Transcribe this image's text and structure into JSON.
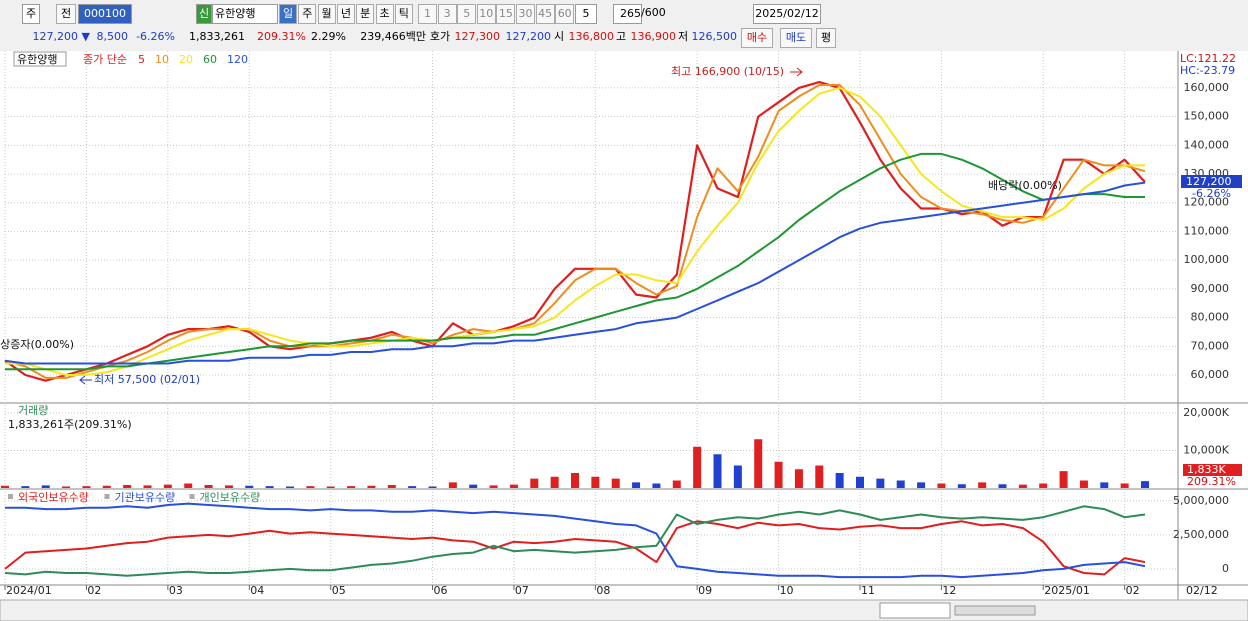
{
  "toolbar": {
    "period_type": "주",
    "prev": "전",
    "code": "000100",
    "new_badge": "신",
    "name": "유한양행",
    "periods": [
      "일",
      "주",
      "월",
      "년",
      "분",
      "초",
      "틱"
    ],
    "intervals": [
      "1",
      "3",
      "5",
      "10",
      "15",
      "30",
      "45",
      "60"
    ],
    "interval_input": "5",
    "count": "265",
    "count_max": "/600",
    "date": "2025/02/12"
  },
  "quote": {
    "price": "127,200 ▼",
    "change": "8,500",
    "change_pct": "-6.26%",
    "volume": "1,833,261",
    "volume_pct": "209.31%",
    "turnover": "2.29%",
    "amount": "239,466백만",
    "ask_label": "호가",
    "ask": "127,300",
    "bid": "127,200",
    "open_label": "시",
    "open": "136,800",
    "high_label": "고",
    "high": "136,900",
    "low_label": "저",
    "low": "126,500",
    "buy": "매수",
    "sell": "매도",
    "eval": "평"
  },
  "chart_data": [
    {
      "type": "line",
      "title": "유한양행",
      "legend_prefix": "종가 단순",
      "grid": true,
      "ylim": [
        50250,
        172500
      ],
      "yticks": [
        {
          "value": 60000,
          "label": "60,000"
        },
        {
          "value": 70000,
          "label": "70,000"
        },
        {
          "value": 80000,
          "label": "80,000"
        },
        {
          "value": 90000,
          "label": "90,000"
        },
        {
          "value": 100000,
          "label": "100,000"
        },
        {
          "value": 110000,
          "label": "110,000"
        },
        {
          "value": 120000,
          "label": "120,000"
        },
        {
          "value": 130000,
          "label": "130,000"
        },
        {
          "value": 140000,
          "label": "140,000"
        },
        {
          "value": 150000,
          "label": "150,000"
        },
        {
          "value": 160000,
          "label": "160,000"
        }
      ],
      "series": [
        {
          "name": "5",
          "color": "#e01e1e",
          "values": [
            65000,
            60000,
            58000,
            60000,
            62000,
            64000,
            67000,
            70000,
            74000,
            76000,
            76000,
            77000,
            75000,
            70000,
            69000,
            70000,
            71000,
            72000,
            73000,
            75000,
            72000,
            70000,
            78000,
            74000,
            75000,
            77000,
            80000,
            90000,
            97000,
            97000,
            97000,
            88000,
            87000,
            95000,
            140000,
            125000,
            122000,
            150000,
            155000,
            160000,
            162000,
            160000,
            148000,
            135000,
            125000,
            118000,
            118000,
            116000,
            117000,
            112000,
            115000,
            115000,
            135000,
            135000,
            130000,
            135000,
            127200
          ]
        },
        {
          "name": "10",
          "color": "#f08c1e",
          "values": [
            65000,
            63000,
            59000,
            59000,
            61000,
            63000,
            65000,
            68000,
            72000,
            75000,
            76000,
            76000,
            76000,
            72000,
            70000,
            70000,
            70000,
            71000,
            72000,
            74000,
            73000,
            71000,
            74000,
            76000,
            75000,
            76000,
            78000,
            85000,
            93000,
            97000,
            97000,
            92000,
            88000,
            91000,
            115000,
            132000,
            124000,
            136000,
            152000,
            157000,
            161000,
            161000,
            154000,
            142000,
            130000,
            122000,
            118000,
            117000,
            116000,
            114000,
            113000,
            115000,
            125000,
            135000,
            133000,
            133000,
            131000
          ]
        },
        {
          "name": "20",
          "color": "#f5e61e",
          "values": [
            64000,
            64000,
            62000,
            60000,
            60000,
            61000,
            63000,
            66000,
            69000,
            72000,
            74000,
            76000,
            76000,
            74000,
            72000,
            71000,
            70000,
            70000,
            71000,
            72000,
            73000,
            72000,
            73000,
            74000,
            75000,
            76000,
            77000,
            80000,
            86000,
            91000,
            95000,
            95000,
            93000,
            92000,
            103000,
            112000,
            120000,
            134000,
            145000,
            152000,
            158000,
            160000,
            157000,
            150000,
            140000,
            130000,
            124000,
            119000,
            117000,
            115000,
            115000,
            114000,
            118000,
            125000,
            130000,
            133000,
            133000
          ]
        },
        {
          "name": "60",
          "color": "#1e9632",
          "values": [
            62000,
            62000,
            62000,
            62000,
            62000,
            63000,
            63000,
            64000,
            65000,
            66000,
            67000,
            68000,
            69000,
            70000,
            70000,
            71000,
            71000,
            72000,
            72000,
            72000,
            72000,
            72000,
            73000,
            73000,
            73000,
            74000,
            74000,
            76000,
            78000,
            80000,
            82000,
            84000,
            86000,
            87000,
            90000,
            94000,
            98000,
            103000,
            108000,
            114000,
            119000,
            124000,
            128000,
            132000,
            135000,
            137000,
            137000,
            135000,
            132000,
            128000,
            124000,
            121000,
            122000,
            123000,
            123000,
            122000,
            122000
          ]
        },
        {
          "name": "120",
          "color": "#2850dc",
          "values": [
            65000,
            64000,
            64000,
            64000,
            64000,
            64000,
            64000,
            64000,
            64000,
            65000,
            65000,
            65000,
            66000,
            66000,
            66000,
            67000,
            67000,
            68000,
            68000,
            69000,
            69000,
            70000,
            70000,
            71000,
            71000,
            72000,
            72000,
            73000,
            74000,
            75000,
            76000,
            78000,
            79000,
            80000,
            83000,
            86000,
            89000,
            92000,
            96000,
            100000,
            104000,
            108000,
            111000,
            113000,
            114000,
            115000,
            116000,
            117000,
            118000,
            119000,
            120000,
            121000,
            122000,
            123000,
            124000,
            126000,
            127000
          ]
        }
      ],
      "annotations": [
        "최고 166,900 (10/15)",
        "최저 57,500 (02/01)",
        "유상증자(0.00%)",
        "배당락(0.00%)"
      ],
      "lc": "LC:121.22",
      "hc": "HC:-23.79",
      "current_label": "127,200",
      "current_change": "-6.26%"
    },
    {
      "type": "bar",
      "title": "거래량",
      "subtitle": "1,833,261주(209.31%)",
      "up_color": "#e02020",
      "down_color": "#2040d0",
      "grid": true,
      "ylim": [
        0,
        22400
      ],
      "yticks": [
        {
          "value": 10000,
          "label": "10,000K"
        },
        {
          "value": 20000,
          "label": "20,000K"
        }
      ],
      "values": [
        600,
        500,
        700,
        400,
        500,
        600,
        800,
        700,
        900,
        1200,
        800,
        700,
        600,
        500,
        400,
        500,
        400,
        500,
        600,
        800,
        500,
        400,
        1500,
        900,
        700,
        900,
        2500,
        3000,
        4000,
        3000,
        2500,
        1500,
        1200,
        2000,
        11000,
        9000,
        6000,
        13000,
        7000,
        5000,
        6000,
        4000,
        3000,
        2500,
        2000,
        1500,
        1200,
        1000,
        1500,
        1000,
        900,
        1200,
        4500,
        2000,
        1500,
        1200,
        1833
      ],
      "current_label": "1,833K",
      "current_pct": "209.31%"
    },
    {
      "type": "line",
      "grid": true,
      "ylim": [
        -1180000,
        5800000
      ],
      "yticks": [
        {
          "value": 0,
          "label": "0"
        },
        {
          "value": 2500000,
          "label": "2,500,000"
        },
        {
          "value": 5000000,
          "label": "5,000,000"
        }
      ],
      "categories": [
        "2024/01",
        null,
        null,
        null,
        "02",
        null,
        null,
        null,
        "03",
        null,
        null,
        null,
        "04",
        null,
        null,
        null,
        "05",
        null,
        null,
        null,
        null,
        "06",
        null,
        null,
        null,
        "07",
        null,
        null,
        null,
        "08",
        null,
        null,
        null,
        null,
        "09",
        null,
        null,
        null,
        "10",
        null,
        null,
        null,
        "11",
        null,
        null,
        null,
        "12",
        null,
        null,
        null,
        null,
        "2025/01",
        null,
        null,
        null,
        "02",
        null
      ],
      "x_end_label": "02/12",
      "series": [
        {
          "name": "외국인보유수량",
          "color": "#e01e1e",
          "values": [
            0,
            1200000,
            1300000,
            1400000,
            1500000,
            1700000,
            1900000,
            2000000,
            2300000,
            2400000,
            2500000,
            2400000,
            2600000,
            2800000,
            2600000,
            2700000,
            2600000,
            2500000,
            2400000,
            2300000,
            2200000,
            2300000,
            2100000,
            2000000,
            1500000,
            2000000,
            1900000,
            2000000,
            2200000,
            2100000,
            2000000,
            1500000,
            500000,
            3000000,
            3500000,
            3300000,
            3000000,
            3400000,
            3200000,
            3300000,
            3000000,
            2900000,
            3100000,
            3200000,
            3000000,
            3000000,
            3300000,
            3500000,
            3200000,
            3300000,
            3000000,
            2000000,
            200000,
            -300000,
            -400000,
            800000,
            500000
          ]
        },
        {
          "name": "기관보유수량",
          "color": "#2850dc",
          "values": [
            4500000,
            4500000,
            4400000,
            4400000,
            4500000,
            4500000,
            4600000,
            4500000,
            4700000,
            4800000,
            4700000,
            4600000,
            4500000,
            4400000,
            4400000,
            4300000,
            4400000,
            4300000,
            4300000,
            4200000,
            4200000,
            4300000,
            4200000,
            4100000,
            4200000,
            4100000,
            4000000,
            3900000,
            3700000,
            3500000,
            3300000,
            3200000,
            2600000,
            200000,
            0,
            -200000,
            -300000,
            -400000,
            -500000,
            -500000,
            -500000,
            -600000,
            -600000,
            -600000,
            -600000,
            -500000,
            -500000,
            -600000,
            -500000,
            -400000,
            -300000,
            -100000,
            0,
            300000,
            400000,
            500000,
            200000
          ]
        },
        {
          "name": "개인보유수량",
          "color": "#2e8b57",
          "values": [
            -300000,
            -400000,
            -200000,
            -300000,
            -300000,
            -400000,
            -500000,
            -400000,
            -300000,
            -200000,
            -300000,
            -300000,
            -200000,
            -100000,
            0,
            -100000,
            -100000,
            100000,
            300000,
            400000,
            600000,
            900000,
            1100000,
            1200000,
            1700000,
            1300000,
            1400000,
            1300000,
            1200000,
            1300000,
            1400000,
            1600000,
            1700000,
            4000000,
            3300000,
            3600000,
            3800000,
            3700000,
            4000000,
            4200000,
            4000000,
            4300000,
            4000000,
            3600000,
            3800000,
            4000000,
            3800000,
            3700000,
            3800000,
            3700000,
            3600000,
            3800000,
            4200000,
            4600000,
            4400000,
            3800000,
            4000000
          ]
        }
      ]
    }
  ]
}
